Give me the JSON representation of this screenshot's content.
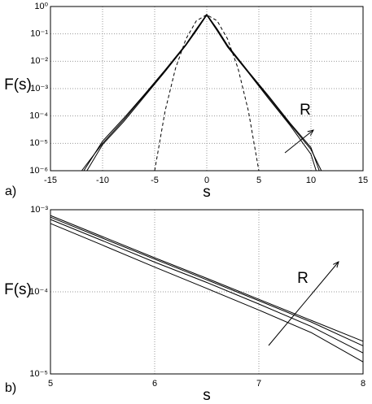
{
  "chart_data": [
    {
      "type": "line",
      "panel_label": "a)",
      "xlabel": "s",
      "ylabel": "F(s)",
      "log_y": true,
      "grid": true,
      "xlim": [
        -15,
        15
      ],
      "xticks": [
        -15,
        -10,
        -5,
        0,
        5,
        10,
        15
      ],
      "ylim": [
        1e-06,
        1
      ],
      "yticks": [
        {
          "value": 1,
          "label": "10⁰"
        },
        {
          "value": 0.1,
          "label": "10⁻¹"
        },
        {
          "value": 0.01,
          "label": "10⁻²"
        },
        {
          "value": 0.001,
          "label": "10⁻³"
        },
        {
          "value": 0.0001,
          "label": "10⁻⁴"
        },
        {
          "value": 1e-05,
          "label": "10⁻⁵"
        },
        {
          "value": 1e-06,
          "label": "10⁻⁶"
        }
      ],
      "annotation": "R",
      "series": [
        {
          "color": "#000000",
          "x": [
            -12,
            -10,
            -8,
            -6,
            -4,
            -2,
            -1,
            0,
            1,
            2,
            4,
            6,
            8,
            10,
            11
          ],
          "values": [
            1e-06,
            1e-05,
            7e-05,
            0.00056,
            0.0045,
            0.04,
            0.14,
            0.5,
            0.14,
            0.035,
            0.004,
            0.00045,
            5e-05,
            6e-06,
            1e-06
          ]
        },
        {
          "color": "#000000",
          "x": [
            -11.8,
            -10,
            -8,
            -6,
            -4,
            -2,
            -1,
            0,
            1,
            2,
            4,
            6,
            8,
            10,
            10.8
          ],
          "values": [
            1e-06,
            1.2e-05,
            8e-05,
            0.0006,
            0.0048,
            0.042,
            0.15,
            0.52,
            0.15,
            0.038,
            0.0042,
            0.0005,
            5.5e-05,
            7e-06,
            1e-06
          ]
        },
        {
          "color": "#000000",
          "x": [
            -11.5,
            -10,
            -8,
            -6,
            -4,
            -2,
            -1,
            0,
            1,
            2,
            4,
            6,
            8,
            10,
            10.5
          ],
          "values": [
            1e-06,
            9e-06,
            6e-05,
            0.0005,
            0.0042,
            0.038,
            0.13,
            0.48,
            0.13,
            0.033,
            0.0038,
            0.0004,
            4.5e-05,
            4e-06,
            1e-06
          ]
        },
        {
          "color": "#000000",
          "dashed": true,
          "x": [
            -5,
            -4,
            -3,
            -2,
            -1,
            0,
            1,
            2,
            3,
            4,
            5
          ],
          "values": [
            1e-06,
            0.00015,
            0.0055,
            0.065,
            0.3,
            0.5,
            0.3,
            0.065,
            0.0055,
            0.00015,
            1e-06
          ]
        }
      ]
    },
    {
      "type": "line",
      "panel_label": "b)",
      "xlabel": "s",
      "ylabel": "F(s)",
      "log_y": true,
      "grid": true,
      "xlim": [
        5,
        8
      ],
      "xticks": [
        5,
        6,
        7,
        8
      ],
      "ylim": [
        1e-05,
        0.001
      ],
      "yticks": [
        {
          "value": 0.001,
          "label": "10⁻³"
        },
        {
          "value": 0.0001,
          "label": "10⁻⁴"
        },
        {
          "value": 1e-05,
          "label": "10⁻⁵"
        }
      ],
      "annotation": "R",
      "series": [
        {
          "color": "#000000",
          "x": [
            5,
            5.5,
            6,
            6.5,
            7,
            7.5,
            8
          ],
          "values": [
            0.00085,
            0.00047,
            0.00026,
            0.000146,
            8.1e-05,
            4.5e-05,
            2.5e-05
          ]
        },
        {
          "color": "#000000",
          "x": [
            5,
            5.5,
            6,
            6.5,
            7,
            7.5,
            8
          ],
          "values": [
            0.00081,
            0.00045,
            0.00025,
            0.00014,
            7.8e-05,
            4.3e-05,
            2.2e-05
          ]
        },
        {
          "color": "#000000",
          "x": [
            5,
            5.5,
            6,
            6.5,
            7,
            7.5,
            8
          ],
          "values": [
            0.00076,
            0.00042,
            0.00023,
            0.00013,
            7.1e-05,
            3.8e-05,
            1.8e-05
          ]
        },
        {
          "color": "#000000",
          "x": [
            5,
            5.5,
            6,
            6.5,
            7,
            7.5,
            8
          ],
          "values": [
            0.00068,
            0.00037,
            0.0002,
            0.00011,
            6e-05,
            3.2e-05,
            1.4e-05
          ]
        }
      ]
    }
  ]
}
